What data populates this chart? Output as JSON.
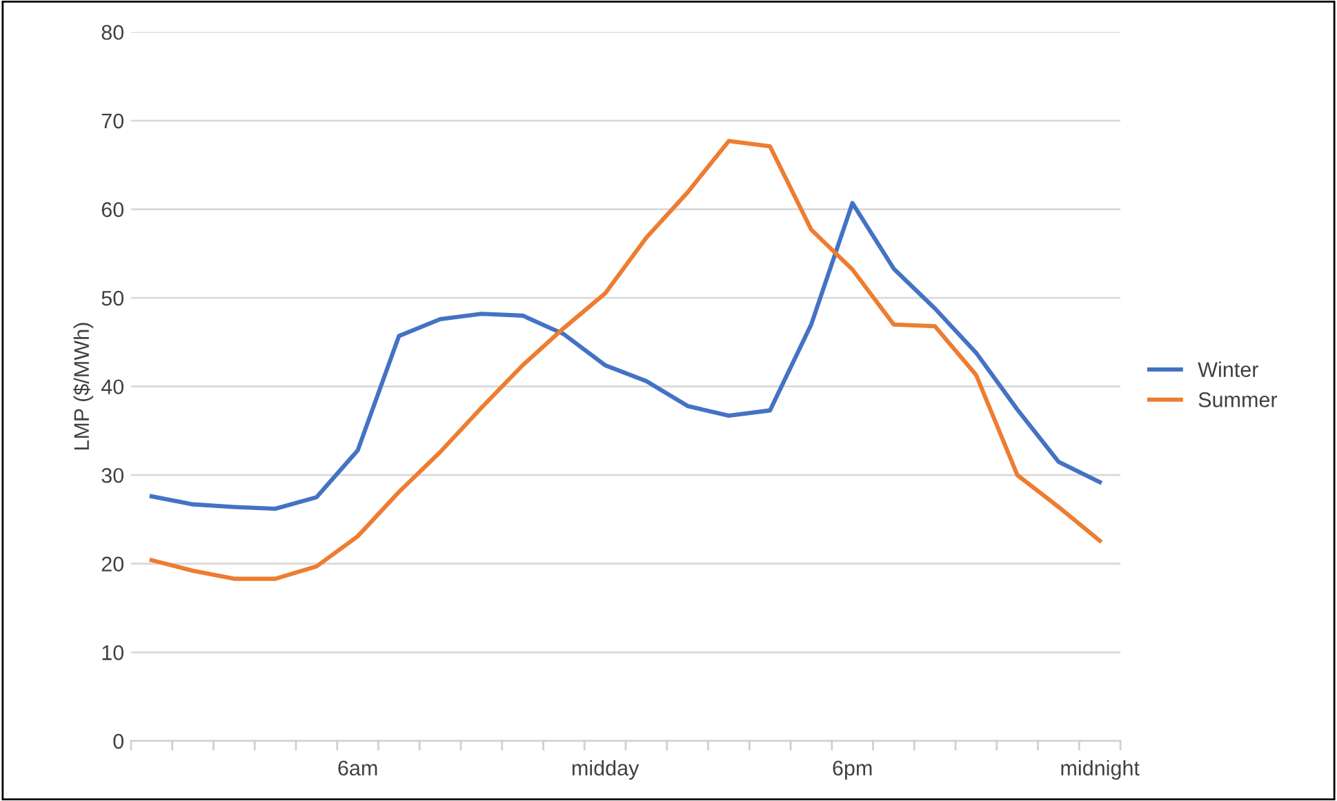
{
  "chart_data": {
    "type": "line",
    "ylabel": "LMP ($/MWh)",
    "categories": [
      null,
      null,
      null,
      null,
      null,
      "6am",
      null,
      null,
      null,
      null,
      null,
      "midday",
      null,
      null,
      null,
      null,
      null,
      "6pm",
      null,
      null,
      null,
      null,
      null,
      "midnight"
    ],
    "series": [
      {
        "name": "Winter",
        "color": "#4472c4",
        "values": [
          27.6,
          26.7,
          26.4,
          26.2,
          27.5,
          32.8,
          45.7,
          47.6,
          48.2,
          48.0,
          45.9,
          42.4,
          40.6,
          37.8,
          36.7,
          37.3,
          47.0,
          60.7,
          53.3,
          48.8,
          43.8,
          37.4,
          31.5,
          29.2
        ]
      },
      {
        "name": "Summer",
        "color": "#ed7d31",
        "values": [
          20.4,
          19.2,
          18.3,
          18.3,
          19.7,
          23.1,
          28.1,
          32.6,
          37.6,
          42.4,
          46.6,
          50.5,
          56.8,
          61.9,
          67.7,
          67.1,
          57.7,
          53.2,
          47.0,
          46.8,
          41.3,
          30.0,
          26.4,
          22.6
        ]
      }
    ],
    "ylim": [
      0,
      80
    ],
    "yticks": [
      0,
      10,
      20,
      30,
      40,
      50,
      60,
      70,
      80
    ],
    "grid": "y",
    "legend": "right",
    "marker": "none",
    "line_style": "solid"
  }
}
